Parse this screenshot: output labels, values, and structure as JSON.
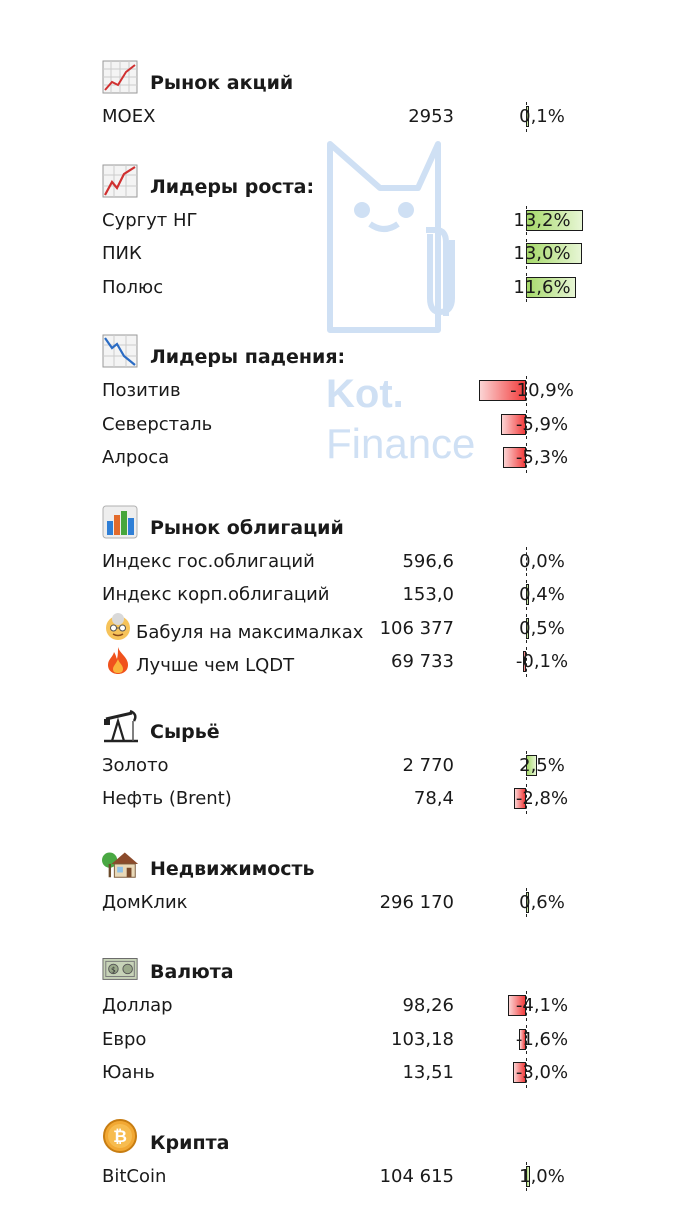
{
  "watermark": {
    "line1": "Kot.",
    "line2": "Finance"
  },
  "sections": [
    {
      "id": "stocks",
      "icon": "stock-chart-icon",
      "title": "Рынок акций",
      "rows": [
        {
          "name": "MOEX",
          "value": "2953",
          "pct": "0,1%",
          "pct_num": 0.1
        }
      ]
    },
    {
      "id": "gainers",
      "icon": "trend-up-chart-icon",
      "title": "Лидеры роста:",
      "rows": [
        {
          "name": "Сургут НГ",
          "value": "",
          "pct": "13,2%",
          "pct_num": 13.2
        },
        {
          "name": "ПИК",
          "value": "",
          "pct": "13,0%",
          "pct_num": 13.0
        },
        {
          "name": "Полюс",
          "value": "",
          "pct": "11,6%",
          "pct_num": 11.6
        }
      ]
    },
    {
      "id": "losers",
      "icon": "trend-down-chart-icon",
      "title": "Лидеры падения:",
      "rows": [
        {
          "name": "Позитив",
          "value": "",
          "pct": "-10,9%",
          "pct_num": -10.9
        },
        {
          "name": "Северсталь",
          "value": "",
          "pct": "-5,9%",
          "pct_num": -5.9
        },
        {
          "name": "Алроса",
          "value": "",
          "pct": "-5,3%",
          "pct_num": -5.3
        }
      ]
    },
    {
      "id": "bonds",
      "icon": "bar-chart-icon",
      "title": "Рынок облигаций",
      "rows": [
        {
          "name": "Индекс гос.облигаций",
          "value": "596,6",
          "pct": "0,0%",
          "pct_num": 0.0
        },
        {
          "name": "Индекс корп.облигаций",
          "value": "153,0",
          "pct": "0,4%",
          "pct_num": 0.4
        },
        {
          "name": "Бабуля на максималках",
          "icon": "grandma-icon",
          "value": "106 377",
          "pct": "0,5%",
          "pct_num": 0.5
        },
        {
          "name": "Лучше чем LQDT",
          "icon": "fire-icon",
          "value": "69 733",
          "pct": "-0,1%",
          "pct_num": -0.1
        }
      ]
    },
    {
      "id": "commodities",
      "icon": "oil-pump-icon",
      "title": "Сырьё",
      "rows": [
        {
          "name": "Золото",
          "value": "2 770",
          "pct": "2,5%",
          "pct_num": 2.5
        },
        {
          "name": "Нефть (Brent)",
          "value": "78,4",
          "pct": "-2,8%",
          "pct_num": -2.8
        }
      ]
    },
    {
      "id": "realty",
      "icon": "house-icon",
      "title": "Недвижимость",
      "rows": [
        {
          "name": "ДомКлик",
          "value": "296 170",
          "pct": "0,6%",
          "pct_num": 0.6
        }
      ]
    },
    {
      "id": "currency",
      "icon": "banknote-icon",
      "title": "Валюта",
      "rows": [
        {
          "name": "Доллар",
          "value": "98,26",
          "pct": "-4,1%",
          "pct_num": -4.1
        },
        {
          "name": "Евро",
          "value": "103,18",
          "pct": "-1,6%",
          "pct_num": -1.6
        },
        {
          "name": "Юань",
          "value": "13,51",
          "pct": "-3,0%",
          "pct_num": -3.0
        }
      ]
    },
    {
      "id": "crypto",
      "icon": "bitcoin-icon",
      "title": "Крипта",
      "rows": [
        {
          "name": "BitCoin",
          "value": "104 615",
          "pct": "1,0%",
          "pct_num": 1.0
        }
      ]
    }
  ]
}
